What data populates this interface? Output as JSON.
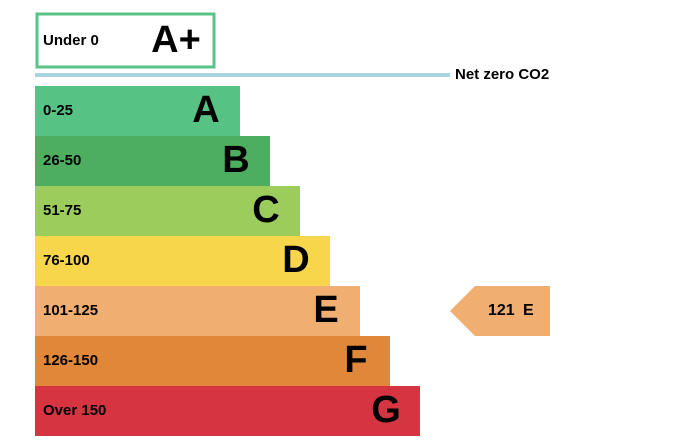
{
  "top_box": {
    "range": "Under 0",
    "letter": "A+",
    "color": "#5cc387"
  },
  "net_zero": {
    "label": "Net zero CO2",
    "color": "#a9d4e2"
  },
  "bands": [
    {
      "range": "0-25",
      "letter": "A",
      "color": "#56c283"
    },
    {
      "range": "26-50",
      "letter": "B",
      "color": "#4eae5f"
    },
    {
      "range": "51-75",
      "letter": "C",
      "color": "#9ccc5b"
    },
    {
      "range": "76-100",
      "letter": "D",
      "color": "#f7d64b"
    },
    {
      "range": "101-125",
      "letter": "E",
      "color": "#f0ae71"
    },
    {
      "range": "126-150",
      "letter": "F",
      "color": "#e0873a"
    },
    {
      "range": "Over 150",
      "letter": "G",
      "color": "#d63441"
    }
  ],
  "current": {
    "value": "121",
    "letter": "E",
    "color": "#f0ae71"
  }
}
